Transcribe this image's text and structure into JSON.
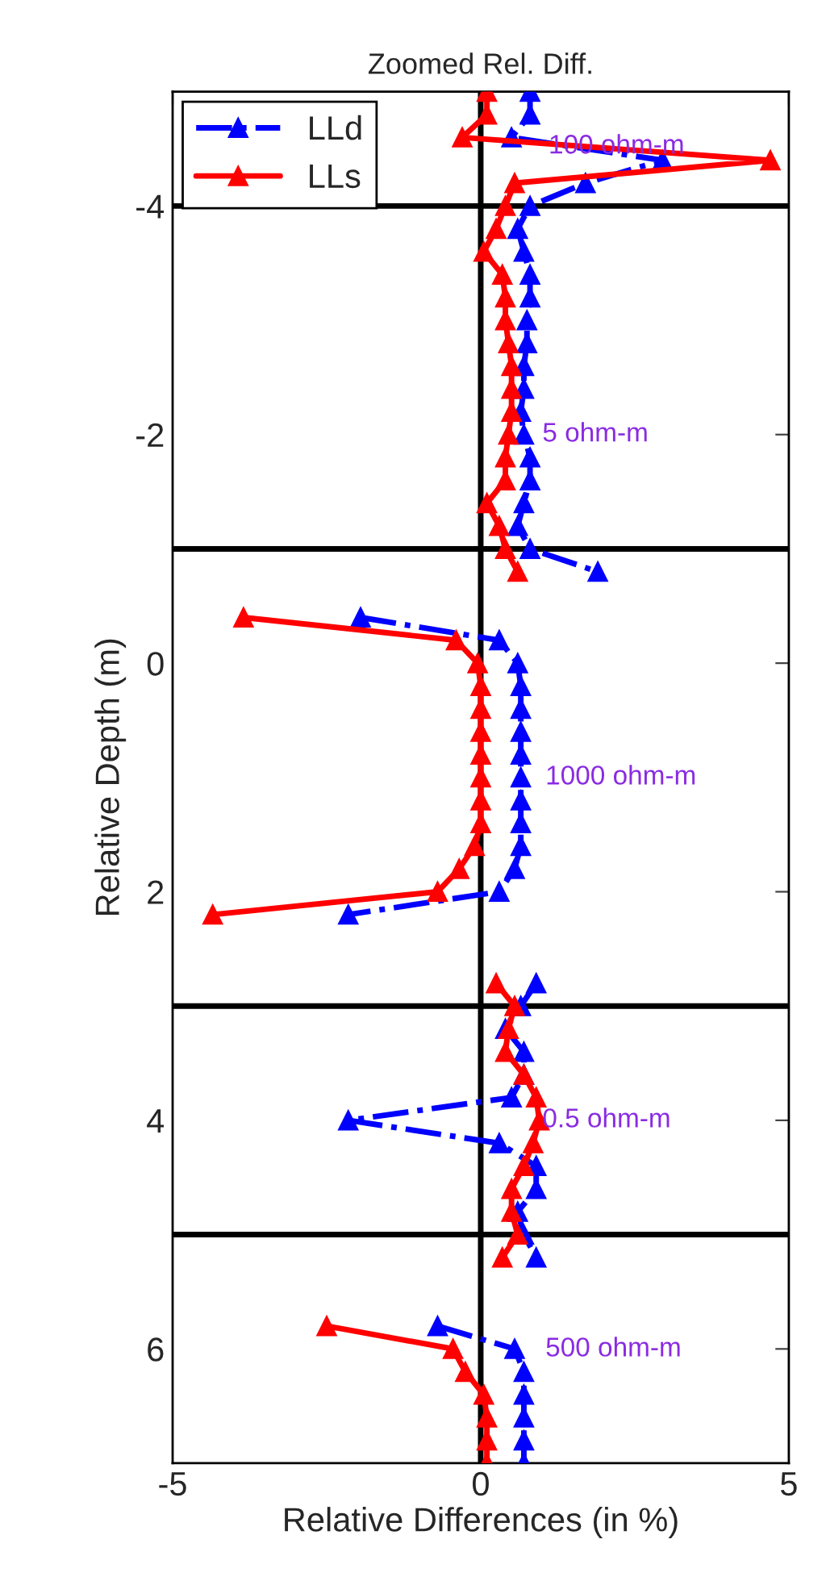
{
  "chart_data": {
    "type": "line",
    "orientation": "horizontal",
    "title": "Zoomed Rel. Diff.",
    "xlabel": "Relative Differences (in %)",
    "ylabel": "Relative Depth (m)",
    "x": [
      -5.0,
      -4.8,
      -4.6,
      -4.4,
      -4.2,
      -4.0,
      -3.8,
      -3.6,
      -3.4,
      -3.2,
      -3.0,
      -2.8,
      -2.6,
      -2.4,
      -2.2,
      -2.0,
      -1.8,
      -1.6,
      -1.4,
      -1.2,
      -1.0,
      -0.8,
      -0.6,
      -0.4,
      -0.2,
      0.0,
      0.2,
      0.4,
      0.6,
      0.8,
      1.0,
      1.2,
      1.4,
      1.6,
      1.8,
      2.0,
      2.2,
      2.4,
      2.6,
      2.8,
      3.0,
      3.2,
      3.4,
      3.6,
      3.8,
      4.0,
      4.2,
      4.4,
      4.6,
      4.8,
      5.0,
      5.2,
      5.4,
      5.6,
      5.8,
      6.0,
      6.2,
      6.4,
      6.6,
      6.8,
      7.0
    ],
    "series": [
      {
        "name": "LLd",
        "color": "#0000ff",
        "line_style": "dashdot",
        "values": [
          0.8,
          0.8,
          0.5,
          2.95,
          1.7,
          0.8,
          0.6,
          0.7,
          0.8,
          0.8,
          0.75,
          0.75,
          0.7,
          0.7,
          0.65,
          0.7,
          0.8,
          0.8,
          0.7,
          0.6,
          0.8,
          1.9,
          null,
          -1.95,
          0.3,
          0.6,
          0.65,
          0.65,
          0.65,
          0.65,
          0.65,
          0.65,
          0.65,
          0.65,
          0.55,
          0.3,
          -2.15,
          null,
          null,
          0.9,
          0.65,
          0.4,
          0.7,
          0.7,
          0.5,
          -2.15,
          0.3,
          0.9,
          0.9,
          0.6,
          0.7,
          0.9,
          null,
          null,
          -0.7,
          0.55,
          0.7,
          0.7,
          0.7,
          0.7,
          0.7
        ]
      },
      {
        "name": "LLs",
        "color": "#ff0000",
        "line_style": "solid",
        "values": [
          0.1,
          0.1,
          -0.3,
          4.7,
          0.55,
          0.4,
          0.25,
          0.05,
          0.35,
          0.4,
          0.4,
          0.45,
          0.5,
          0.5,
          0.5,
          0.45,
          0.4,
          0.4,
          0.1,
          0.3,
          0.4,
          0.6,
          null,
          -3.85,
          -0.4,
          -0.05,
          0.0,
          0.0,
          0.0,
          0.0,
          0.0,
          0.0,
          0.0,
          -0.1,
          -0.35,
          -0.7,
          -4.35,
          null,
          null,
          0.25,
          0.55,
          0.45,
          0.4,
          0.7,
          0.9,
          0.95,
          0.85,
          0.7,
          0.5,
          0.5,
          0.6,
          0.35,
          null,
          null,
          -2.5,
          -0.45,
          -0.25,
          0.05,
          0.1,
          0.1,
          0.1
        ]
      }
    ],
    "marker": "triangle",
    "legend": "top left",
    "grid": false,
    "xlim": [
      -5,
      5
    ],
    "xticks": [
      -5,
      0,
      5
    ],
    "ylim": [
      7,
      -5
    ],
    "yticks": [
      -4,
      -2,
      0,
      2,
      4,
      6
    ],
    "ref_lines": [
      {
        "axis": "x",
        "value": 0,
        "color": "#000000"
      },
      {
        "axis": "y",
        "value": -4,
        "color": "#000000"
      },
      {
        "axis": "y",
        "value": -1,
        "color": "#000000"
      },
      {
        "axis": "y",
        "value": 3,
        "color": "#000000"
      },
      {
        "axis": "y",
        "value": 5,
        "color": "#000000"
      }
    ],
    "annotations": [
      "100 ohm-m",
      "5 ohm-m",
      "1000 ohm-m",
      "0.5 ohm-m",
      "500 ohm-m"
    ]
  }
}
